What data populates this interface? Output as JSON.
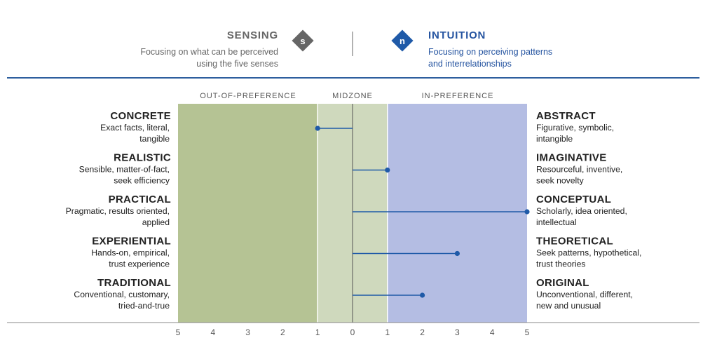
{
  "header": {
    "left": {
      "title": "SENSING",
      "letter": "s",
      "desc_line1": "Focusing on what can be perceived",
      "desc_line2": "using the five senses",
      "color": "#666666",
      "badge_color": "#666666"
    },
    "right": {
      "title": "INTUITION",
      "letter": "n",
      "desc_line1": "Focusing on perceiving patterns",
      "desc_line2": "and interrelationships",
      "color": "#2554a0",
      "badge_color": "#1f5aa8"
    },
    "rule_color": "#2d5e9e"
  },
  "chart_data": {
    "type": "bar",
    "zones": {
      "out_of_preference": {
        "label": "OUT-OF-PREFERENCE",
        "from": -5,
        "to": -1,
        "color": "#b5c394"
      },
      "midzone": {
        "label": "MIDZONE",
        "from": -1,
        "to": 1,
        "color": "#cfd9bd"
      },
      "in_preference": {
        "label": "IN-PREFERENCE",
        "from": 1,
        "to": 5,
        "color": "#b4bde3"
      }
    },
    "x_ticks": [
      "5",
      "4",
      "3",
      "2",
      "1",
      "0",
      "1",
      "2",
      "3",
      "4",
      "5"
    ],
    "xlim": [
      -5,
      5
    ],
    "marker_color": "#1f5aa8",
    "facets": [
      {
        "left_title": "CONCRETE",
        "left_desc1": "Exact facts, literal,",
        "left_desc2": "tangible",
        "right_title": "ABSTRACT",
        "right_desc1": "Figurative, symbolic,",
        "right_desc2": "intangible",
        "value": -1
      },
      {
        "left_title": "REALISTIC",
        "left_desc1": "Sensible, matter-of-fact,",
        "left_desc2": "seek efficiency",
        "right_title": "IMAGINATIVE",
        "right_desc1": "Resourceful, inventive,",
        "right_desc2": "seek novelty",
        "value": 1
      },
      {
        "left_title": "PRACTICAL",
        "left_desc1": "Pragmatic, results oriented,",
        "left_desc2": "applied",
        "right_title": "CONCEPTUAL",
        "right_desc1": "Scholarly, idea oriented,",
        "right_desc2": "intellectual",
        "value": 5
      },
      {
        "left_title": "EXPERIENTIAL",
        "left_desc1": "Hands-on, empirical,",
        "left_desc2": "trust experience",
        "right_title": "THEORETICAL",
        "right_desc1": "Seek patterns, hypothetical,",
        "right_desc2": "trust theories",
        "value": 3
      },
      {
        "left_title": "TRADITIONAL",
        "left_desc1": "Conventional, customary,",
        "left_desc2": "tried-and-true",
        "right_title": "ORIGINAL",
        "right_desc1": "Unconventional, different,",
        "right_desc2": "new and unusual",
        "value": 2
      }
    ]
  }
}
